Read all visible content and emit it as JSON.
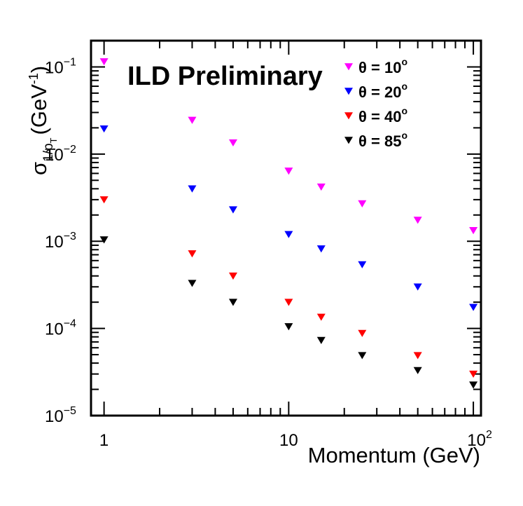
{
  "chart_data": {
    "type": "scatter",
    "x_scale": "log",
    "y_scale": "log",
    "xlabel": "Momentum (GeV)",
    "ylabel": {
      "symbol": "σ",
      "subscript": "1/p",
      "sub_subscript": "T",
      "unit": "(GeV",
      "unit_exp": "-1",
      "unit_close": ")"
    },
    "xlim": [
      0.85,
      110
    ],
    "ylim": [
      1e-05,
      0.2
    ],
    "x_ticks": [
      {
        "value": 1,
        "base": "1",
        "exp": ""
      },
      {
        "value": 10,
        "base": "10",
        "exp": ""
      },
      {
        "value": 100,
        "base": "10",
        "exp": "2"
      }
    ],
    "y_ticks": [
      {
        "value": 1e-05,
        "base": "10",
        "exp": "−5"
      },
      {
        "value": 0.0001,
        "base": "10",
        "exp": "−4"
      },
      {
        "value": 0.001,
        "base": "10",
        "exp": "−3"
      },
      {
        "value": 0.01,
        "base": "10",
        "exp": "−2"
      },
      {
        "value": 0.1,
        "base": "10",
        "exp": "−1"
      }
    ],
    "watermark": "ILD Preliminary",
    "watermark_color": "#b4b4b4",
    "legend_position": "top-right",
    "x": [
      1,
      3,
      5,
      10,
      15,
      25,
      50,
      100
    ],
    "series": [
      {
        "name": "θ = 10",
        "deg": "o",
        "color": "#ff00ff",
        "values": [
          0.115,
          0.0245,
          0.0135,
          0.0064,
          0.0042,
          0.0027,
          0.00175,
          0.00133
        ]
      },
      {
        "name": "θ = 20",
        "deg": "o",
        "color": "#0000ff",
        "values": [
          0.0195,
          0.004,
          0.0023,
          0.0012,
          0.00082,
          0.00054,
          0.0003,
          0.000175
        ]
      },
      {
        "name": "θ = 40",
        "deg": "o",
        "color": "#ff0000",
        "values": [
          0.003,
          0.00072,
          0.0004,
          0.0002,
          0.000135,
          8.8e-05,
          4.9e-05,
          3e-05
        ]
      },
      {
        "name": "θ = 85",
        "deg": "o",
        "color": "#000000",
        "values": [
          0.00104,
          0.00033,
          0.0002,
          0.000105,
          7.3e-05,
          4.9e-05,
          3.3e-05,
          2.25e-05
        ]
      }
    ]
  }
}
